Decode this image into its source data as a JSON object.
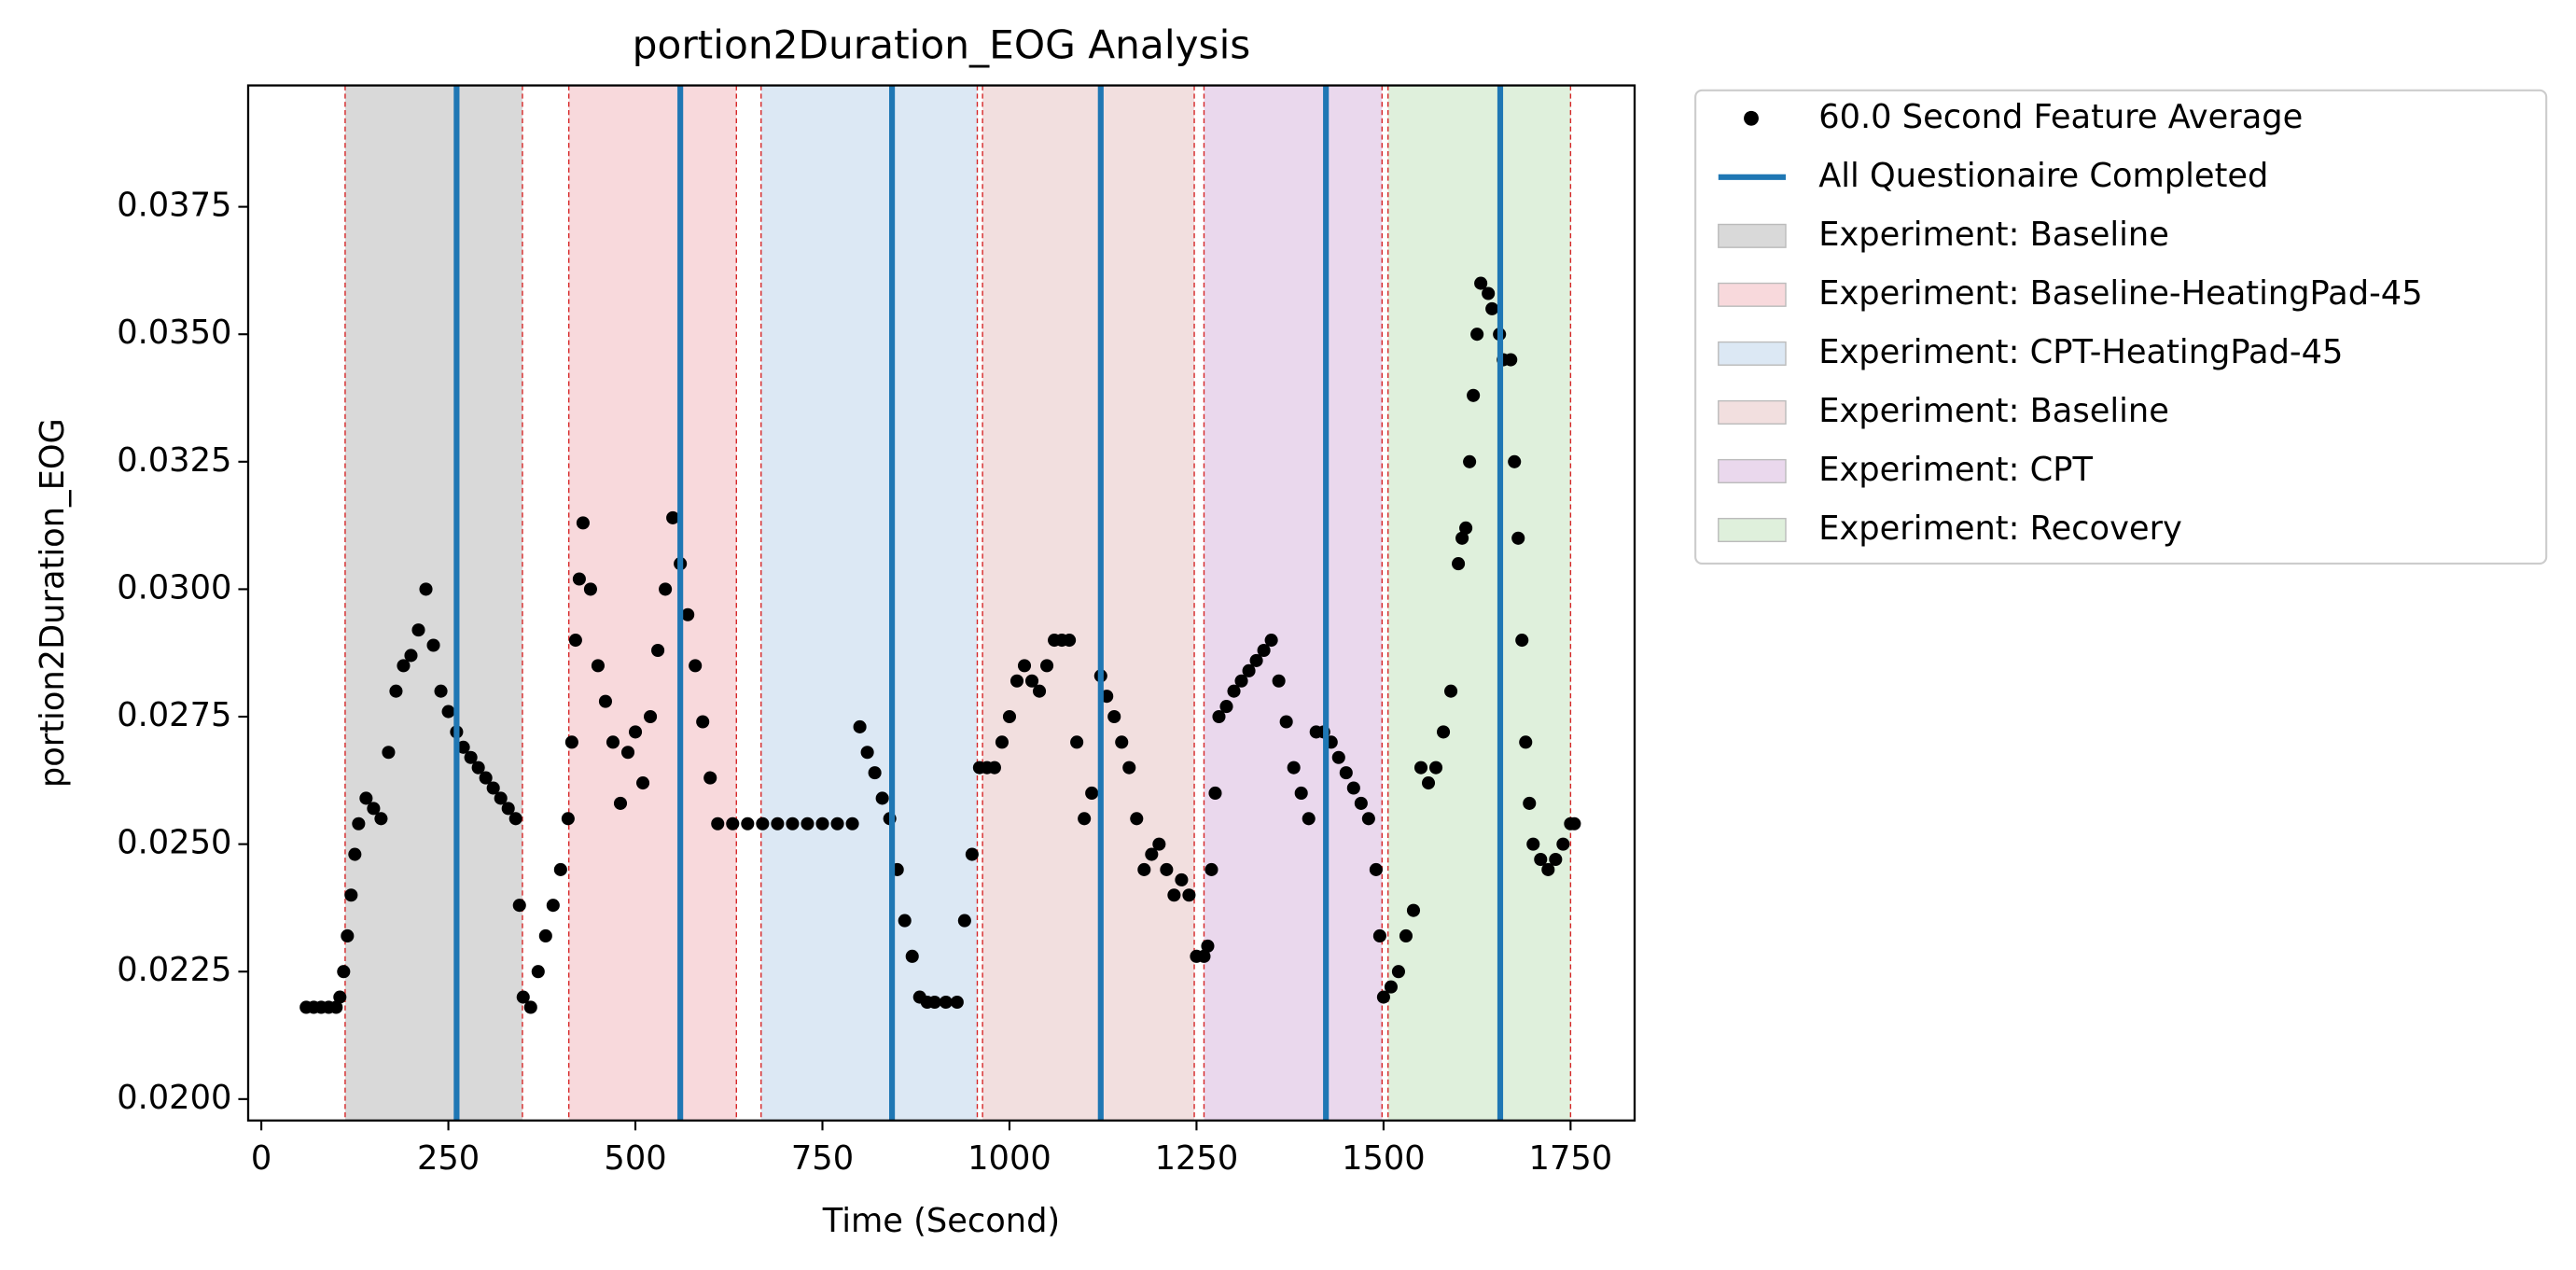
{
  "chart_data": {
    "type": "scatter",
    "title": "portion2Duration_EOG Analysis",
    "xlabel": "Time (Second)",
    "ylabel": "portion2Duration_EOG",
    "xlim": [
      -17.6,
      1835.6
    ],
    "ylim": [
      0.01958,
      0.03988
    ],
    "xticks": [
      0,
      250,
      500,
      750,
      1000,
      1250,
      1500,
      1750
    ],
    "yticks": [
      {
        "value": 0.02,
        "label": "0.0200"
      },
      {
        "value": 0.0225,
        "label": "0.0225"
      },
      {
        "value": 0.025,
        "label": "0.0250"
      },
      {
        "value": 0.0275,
        "label": "0.0275"
      },
      {
        "value": 0.03,
        "label": "0.0300"
      },
      {
        "value": 0.0325,
        "label": "0.0325"
      },
      {
        "value": 0.035,
        "label": "0.0350"
      },
      {
        "value": 0.0375,
        "label": "0.0375"
      }
    ],
    "series": [
      {
        "name": "60.0 Second Feature Average",
        "color": "#000000",
        "x": [
          60,
          70,
          80,
          90,
          100,
          105,
          110,
          115,
          120,
          125,
          130,
          140,
          150,
          160,
          170,
          180,
          190,
          200,
          210,
          220,
          230,
          240,
          250,
          261,
          270,
          280,
          290,
          300,
          310,
          320,
          330,
          340,
          345,
          350,
          360,
          370,
          380,
          390,
          400,
          410,
          415,
          420,
          425,
          430,
          440,
          450,
          460,
          470,
          480,
          490,
          500,
          510,
          520,
          530,
          540,
          550,
          560,
          570,
          580,
          590,
          600,
          610,
          630,
          650,
          670,
          690,
          710,
          730,
          750,
          770,
          790,
          800,
          810,
          820,
          830,
          840,
          850,
          860,
          870,
          880,
          890,
          900,
          915,
          930,
          940,
          950,
          960,
          970,
          980,
          990,
          1000,
          1010,
          1020,
          1030,
          1040,
          1050,
          1060,
          1070,
          1080,
          1090,
          1100,
          1110,
          1122,
          1130,
          1140,
          1150,
          1160,
          1170,
          1180,
          1190,
          1200,
          1210,
          1220,
          1230,
          1240,
          1250,
          1260,
          1265,
          1270,
          1275,
          1280,
          1290,
          1300,
          1310,
          1320,
          1330,
          1340,
          1350,
          1360,
          1370,
          1380,
          1390,
          1400,
          1410,
          1420,
          1430,
          1440,
          1450,
          1460,
          1470,
          1480,
          1490,
          1495,
          1500,
          1510,
          1520,
          1530,
          1540,
          1550,
          1560,
          1570,
          1580,
          1590,
          1600,
          1605,
          1610,
          1615,
          1620,
          1625,
          1630,
          1640,
          1645,
          1655,
          1660,
          1670,
          1675,
          1680,
          1685,
          1690,
          1695,
          1700,
          1710,
          1720,
          1730,
          1740,
          1750,
          1755
        ],
        "values": [
          0.0218,
          0.0218,
          0.0218,
          0.0218,
          0.0218,
          0.022,
          0.0225,
          0.0232,
          0.024,
          0.0248,
          0.0254,
          0.0259,
          0.0257,
          0.0255,
          0.0268,
          0.028,
          0.0285,
          0.0287,
          0.0292,
          0.03,
          0.0289,
          0.028,
          0.0276,
          0.0272,
          0.0269,
          0.0267,
          0.0265,
          0.0263,
          0.0261,
          0.0259,
          0.0257,
          0.0255,
          0.0238,
          0.022,
          0.0218,
          0.0225,
          0.0232,
          0.0238,
          0.0245,
          0.0255,
          0.027,
          0.029,
          0.0302,
          0.0313,
          0.03,
          0.0285,
          0.0278,
          0.027,
          0.0258,
          0.0268,
          0.0272,
          0.0262,
          0.0275,
          0.0288,
          0.03,
          0.0314,
          0.0305,
          0.0295,
          0.0285,
          0.0274,
          0.0263,
          0.0254,
          0.0254,
          0.0254,
          0.0254,
          0.0254,
          0.0254,
          0.0254,
          0.0254,
          0.0254,
          0.0254,
          0.0273,
          0.0268,
          0.0264,
          0.0259,
          0.0255,
          0.0245,
          0.0235,
          0.0228,
          0.022,
          0.0219,
          0.0219,
          0.0219,
          0.0219,
          0.0235,
          0.0248,
          0.0265,
          0.0265,
          0.0265,
          0.027,
          0.0275,
          0.0282,
          0.0285,
          0.0282,
          0.028,
          0.0285,
          0.029,
          0.029,
          0.029,
          0.027,
          0.0255,
          0.026,
          0.0283,
          0.0279,
          0.0275,
          0.027,
          0.0265,
          0.0255,
          0.0245,
          0.0248,
          0.025,
          0.0245,
          0.024,
          0.0243,
          0.024,
          0.0228,
          0.0228,
          0.023,
          0.0245,
          0.026,
          0.0275,
          0.0277,
          0.028,
          0.0282,
          0.0284,
          0.0286,
          0.0288,
          0.029,
          0.0282,
          0.0274,
          0.0265,
          0.026,
          0.0255,
          0.0272,
          0.0272,
          0.027,
          0.0267,
          0.0264,
          0.0261,
          0.0258,
          0.0255,
          0.0245,
          0.0232,
          0.022,
          0.0222,
          0.0225,
          0.0232,
          0.0237,
          0.0265,
          0.0262,
          0.0265,
          0.0272,
          0.028,
          0.0305,
          0.031,
          0.0312,
          0.0325,
          0.0338,
          0.035,
          0.036,
          0.0358,
          0.0355,
          0.035,
          0.0345,
          0.0345,
          0.0325,
          0.031,
          0.029,
          0.027,
          0.0258,
          0.025,
          0.0247,
          0.0245,
          0.0247,
          0.025,
          0.0254,
          0.0254
        ]
      }
    ],
    "vlines": {
      "name": "All Questionaire Completed",
      "color": "#1f77b4",
      "x": [
        261,
        560,
        843,
        1122,
        1423,
        1656
      ]
    },
    "regions": [
      {
        "name": "Experiment: Baseline",
        "color": "#d9d9d9",
        "start": 112,
        "end": 349
      },
      {
        "name": "Experiment: Baseline-HeatingPad-45",
        "color": "#f8d9dc",
        "start": 411,
        "end": 635
      },
      {
        "name": "Experiment: CPT-HeatingPad-45",
        "color": "#dce8f4",
        "start": 668,
        "end": 957
      },
      {
        "name": "Experiment: Baseline",
        "color": "#f2dfdf",
        "start": 964,
        "end": 1247
      },
      {
        "name": "Experiment: CPT",
        "color": "#ead8ed",
        "start": 1260,
        "end": 1498
      },
      {
        "name": "Experiment: Recovery",
        "color": "#dff0dc",
        "start": 1506,
        "end": 1750
      }
    ]
  }
}
